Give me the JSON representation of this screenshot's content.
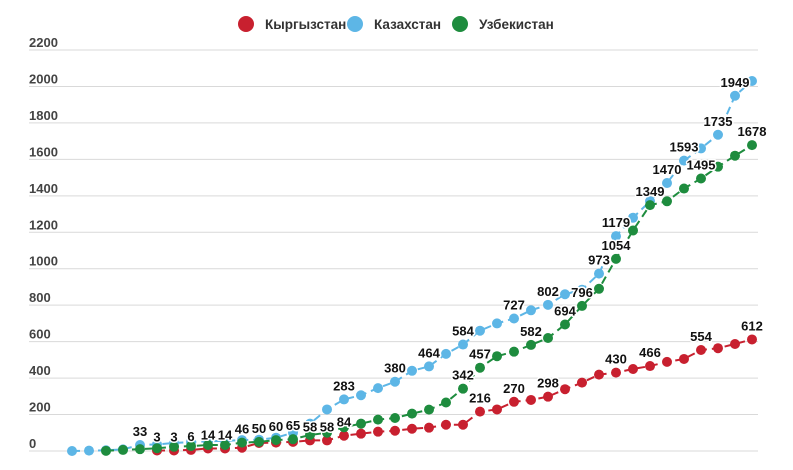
{
  "chart_data": {
    "type": "line",
    "title": "",
    "xlabel": "",
    "ylabel": "",
    "ylim": [
      0,
      2200
    ],
    "yticks": [
      0,
      200,
      400,
      600,
      800,
      1000,
      1200,
      1400,
      1600,
      1800,
      2000,
      2200
    ],
    "grid": true,
    "legend_position": "top",
    "line_style": "dashed with dot markers",
    "series": [
      {
        "name": "Кыргызстан",
        "color": "#c8202f",
        "values": [
          null,
          null,
          null,
          null,
          null,
          3,
          3,
          6,
          14,
          14,
          18,
          44,
          46,
          50,
          58,
          58,
          84,
          95,
          106,
          111,
          122,
          128,
          144,
          144,
          216,
          228,
          270,
          280,
          298,
          339,
          375,
          419,
          430,
          450,
          466,
          489,
          505,
          554,
          564,
          587,
          612
        ],
        "labeled_indices": [
          5,
          6,
          7,
          8,
          9,
          14,
          15,
          16,
          24,
          26,
          28,
          32,
          34,
          37,
          40
        ]
      },
      {
        "name": "Казахстан",
        "color": "#5db6e6",
        "values": [
          0,
          2,
          4,
          9,
          33,
          36,
          44,
          49,
          53,
          56,
          60,
          62,
          73,
          100,
          150,
          228,
          283,
          306,
          345,
          380,
          440,
          464,
          533,
          584,
          660,
          700,
          727,
          772,
          802,
          860,
          885,
          973,
          1179,
          1280,
          1370,
          1470,
          1593,
          1660,
          1735,
          1949,
          2030
        ],
        "labeled_indices": [
          4,
          16,
          19,
          21,
          23,
          26,
          28,
          31,
          32,
          35,
          36,
          38,
          39
        ]
      },
      {
        "name": "Узбекистан",
        "color": "#1e8c3e",
        "values": [
          null,
          null,
          1,
          6,
          10,
          15,
          23,
          27,
          33,
          33,
          46,
          50,
          60,
          65,
          88,
          100,
          130,
          150,
          172,
          181,
          205,
          227,
          266,
          342,
          457,
          520,
          545,
          582,
          620,
          694,
          796,
          890,
          1054,
          1210,
          1349,
          1370,
          1440,
          1495,
          1560,
          1620,
          1678
        ],
        "labeled_indices": [
          10,
          11,
          12,
          13,
          23,
          24,
          27,
          29,
          30,
          32,
          34,
          37,
          40
        ]
      }
    ]
  }
}
